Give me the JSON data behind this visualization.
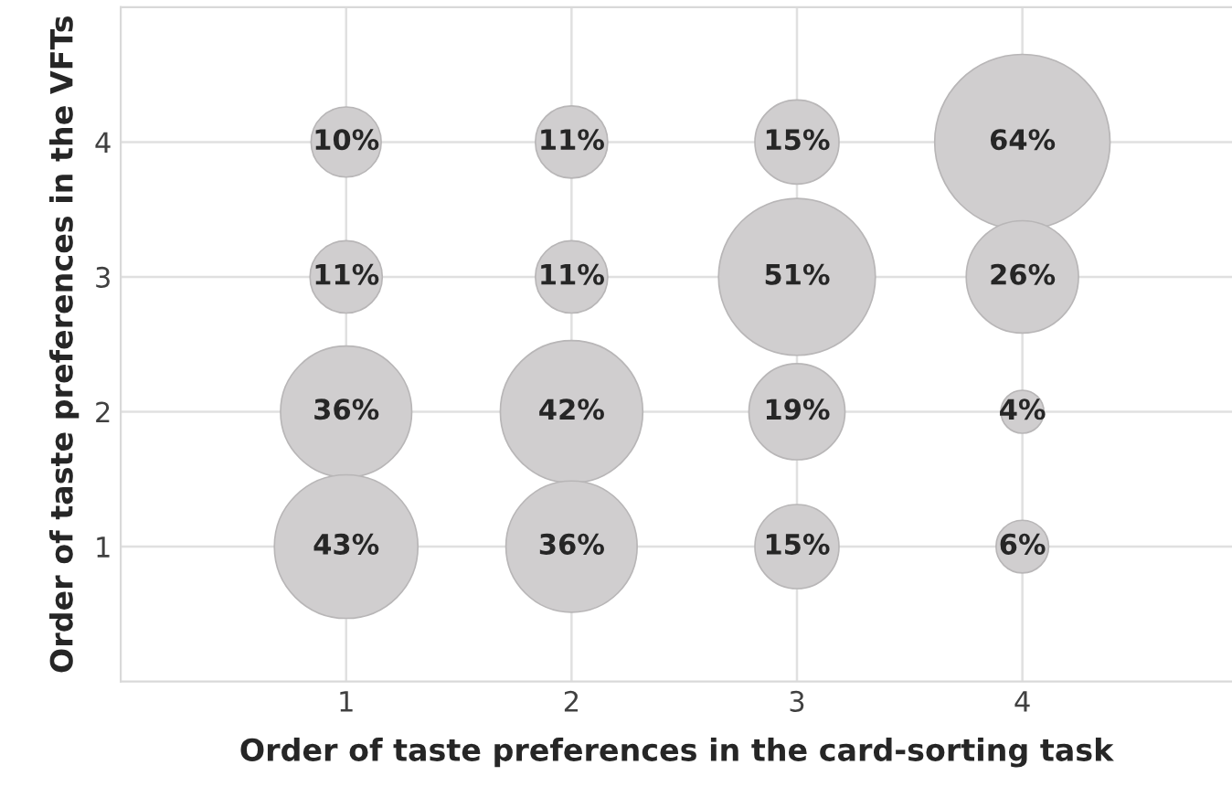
{
  "chart_data": {
    "type": "bubble",
    "xlabel": "Order of taste preferences in the card-sorting task",
    "ylabel": "Order of taste preferences in the VFTs",
    "series": [
      {
        "color": "#d0cecf",
        "x": [
          1,
          1,
          1,
          1,
          2,
          2,
          2,
          2,
          3,
          3,
          3,
          3,
          4,
          4,
          4,
          4
        ],
        "values": [
          4,
          3,
          2,
          1,
          4,
          3,
          2,
          1,
          4,
          3,
          2,
          1,
          4,
          3,
          2,
          1
        ],
        "sizes": [
          0.16,
          0.17,
          0.56,
          0.67,
          0.17,
          0.17,
          0.66,
          0.56,
          0.23,
          0.8,
          0.3,
          0.23,
          1,
          0.41,
          0.06,
          0.09
        ]
      }
    ],
    "annotations": [
      {
        "text": "10%",
        "x": 1,
        "y": 4
      },
      {
        "text": "11%",
        "x": 1,
        "y": 3
      },
      {
        "text": "36%",
        "x": 1,
        "y": 2
      },
      {
        "text": "43%",
        "x": 1,
        "y": 1
      },
      {
        "text": "11%",
        "x": 2,
        "y": 4
      },
      {
        "text": "11%",
        "x": 2,
        "y": 3
      },
      {
        "text": "42%",
        "x": 2,
        "y": 2
      },
      {
        "text": "36%",
        "x": 2,
        "y": 1
      },
      {
        "text": "15%",
        "x": 3,
        "y": 4
      },
      {
        "text": "51%",
        "x": 3,
        "y": 3
      },
      {
        "text": "19%",
        "x": 3,
        "y": 2
      },
      {
        "text": "15%",
        "x": 3,
        "y": 1
      },
      {
        "text": "64%",
        "x": 4,
        "y": 4
      },
      {
        "text": "26%",
        "x": 4,
        "y": 3
      },
      {
        "text": "4%",
        "x": 4,
        "y": 2
      },
      {
        "text": "6%",
        "x": 4,
        "y": 1
      }
    ],
    "xlim": [
      0,
      4.93
    ],
    "ylim": [
      0,
      5
    ],
    "xticks": [
      1,
      2,
      3,
      4
    ],
    "yticks": [
      1,
      2,
      3,
      4
    ],
    "grid": true,
    "legend": false
  }
}
